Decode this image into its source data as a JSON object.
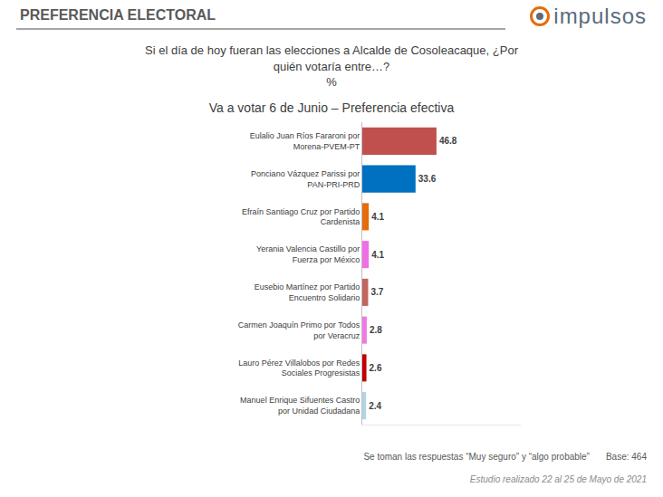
{
  "chart_data": {
    "type": "bar",
    "orientation": "horizontal",
    "header": "PREFERENCIA ELECTORAL",
    "logo": "impulsos",
    "question": "Si el día de hoy fueran las elecciones a Alcalde de Cosoleacaque, ¿Por quién votaría entre…?",
    "unit": "%",
    "title": "Va a votar 6 de Junio – Preferencia efectiva",
    "categories": [
      "Eulalio Juan Ríos Fararoni por Morena-PVEM-PT",
      "Ponciano Vázquez Parissi por PAN-PRI-PRD",
      "Efraín Santiago Cruz por Partido Cardenista",
      "Yerania Valencia Castillo por Fuerza por México",
      "Eusebio Martínez por Partido Encuentro Solidario",
      "Carmen Joaquín Primo por Todos por Veracruz",
      "Lauro Pérez Villalobos por Redes Sociales Progresistas",
      "Manuel Enrique Sifuentes Castro por Unidad Ciudadana"
    ],
    "values": [
      46.8,
      33.6,
      4.1,
      4.1,
      3.7,
      2.8,
      2.6,
      2.4
    ],
    "colors": [
      "#c0504d",
      "#0070c0",
      "#e46c0a",
      "#ee6fe6",
      "#c0665f",
      "#ee78e6",
      "#c00000",
      "#b4d3e6"
    ],
    "data_labels": true,
    "tick_labels": "y",
    "grid": false,
    "xlim": [
      0,
      100
    ],
    "xticks": [],
    "footnote": "Se toman las respuestas “Muy seguro” y “algo probable”",
    "base": "Base: 464",
    "study": "Estudio realizado 22 al 25 de Mayo de 2021"
  }
}
